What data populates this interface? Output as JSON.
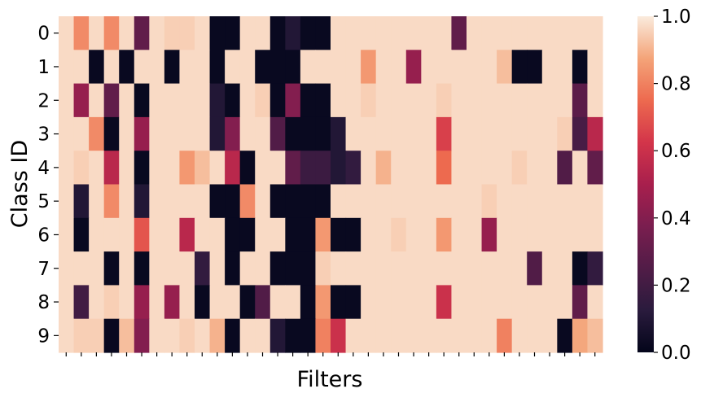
{
  "chart_data": {
    "type": "heatmap",
    "title": "",
    "xlabel": "Filters",
    "ylabel": "Class ID",
    "y_tick_labels": [
      "0",
      "1",
      "2",
      "3",
      "4",
      "5",
      "6",
      "7",
      "8",
      "9"
    ],
    "x_tick_labels_shown": false,
    "n_columns": 36,
    "colormap": "rocket",
    "colorbar": {
      "min": 0.0,
      "max": 1.0,
      "tick_labels": [
        "0.0",
        "0.2",
        "0.4",
        "0.6",
        "0.8",
        "1.0"
      ]
    },
    "grid": false,
    "values": [
      [
        0.97,
        0.82,
        0.97,
        0.82,
        0.97,
        0.3,
        0.97,
        0.95,
        0.95,
        0.97,
        0.02,
        0.02,
        0.97,
        0.97,
        0.02,
        0.1,
        0.02,
        0.02,
        0.97,
        0.97,
        0.97,
        0.97,
        0.97,
        0.97,
        0.97,
        0.97,
        0.3,
        0.97,
        0.97,
        0.97,
        0.97,
        0.97,
        0.97,
        0.97,
        0.97,
        0.97
      ],
      [
        0.97,
        0.97,
        0.02,
        0.97,
        0.02,
        0.97,
        0.97,
        0.02,
        0.97,
        0.97,
        0.02,
        0.97,
        0.97,
        0.02,
        0.02,
        0.02,
        0.97,
        0.97,
        0.97,
        0.97,
        0.85,
        0.97,
        0.97,
        0.45,
        0.97,
        0.97,
        0.97,
        0.97,
        0.97,
        0.92,
        0.02,
        0.02,
        0.97,
        0.97,
        0.02,
        0.97
      ],
      [
        0.97,
        0.45,
        0.97,
        0.3,
        0.97,
        0.02,
        0.97,
        0.97,
        0.97,
        0.97,
        0.1,
        0.02,
        0.97,
        0.95,
        0.02,
        0.4,
        0.02,
        0.02,
        0.97,
        0.97,
        0.95,
        0.97,
        0.97,
        0.97,
        0.97,
        0.95,
        0.97,
        0.97,
        0.97,
        0.97,
        0.97,
        0.97,
        0.97,
        0.97,
        0.28,
        0.97
      ],
      [
        0.97,
        0.97,
        0.82,
        0.02,
        0.97,
        0.45,
        0.97,
        0.97,
        0.97,
        0.97,
        0.1,
        0.4,
        0.97,
        0.97,
        0.25,
        0.02,
        0.02,
        0.02,
        0.1,
        0.97,
        0.97,
        0.97,
        0.97,
        0.97,
        0.97,
        0.65,
        0.97,
        0.97,
        0.97,
        0.97,
        0.97,
        0.97,
        0.97,
        0.95,
        0.22,
        0.55
      ],
      [
        0.97,
        0.95,
        0.97,
        0.55,
        0.97,
        0.02,
        0.97,
        0.97,
        0.85,
        0.92,
        0.97,
        0.55,
        0.02,
        0.97,
        0.97,
        0.3,
        0.18,
        0.18,
        0.1,
        0.15,
        0.97,
        0.9,
        0.97,
        0.97,
        0.97,
        0.75,
        0.97,
        0.97,
        0.97,
        0.97,
        0.95,
        0.97,
        0.97,
        0.25,
        0.97,
        0.3
      ],
      [
        0.97,
        0.1,
        0.97,
        0.82,
        0.97,
        0.1,
        0.97,
        0.97,
        0.97,
        0.97,
        0.02,
        0.02,
        0.82,
        0.97,
        0.02,
        0.02,
        0.02,
        0.02,
        0.97,
        0.97,
        0.97,
        0.97,
        0.97,
        0.97,
        0.97,
        0.97,
        0.97,
        0.97,
        0.95,
        0.97,
        0.97,
        0.97,
        0.97,
        0.97,
        0.97,
        0.97
      ],
      [
        0.97,
        0.02,
        0.97,
        0.97,
        0.97,
        0.7,
        0.97,
        0.97,
        0.55,
        0.97,
        0.97,
        0.02,
        0.02,
        0.97,
        0.97,
        0.02,
        0.02,
        0.85,
        0.02,
        0.02,
        0.97,
        0.97,
        0.95,
        0.97,
        0.97,
        0.85,
        0.97,
        0.97,
        0.45,
        0.97,
        0.97,
        0.97,
        0.97,
        0.97,
        0.97,
        0.97
      ],
      [
        0.97,
        0.97,
        0.97,
        0.02,
        0.97,
        0.02,
        0.97,
        0.97,
        0.97,
        0.15,
        0.97,
        0.02,
        0.97,
        0.97,
        0.02,
        0.02,
        0.02,
        0.95,
        0.97,
        0.97,
        0.97,
        0.97,
        0.97,
        0.97,
        0.97,
        0.97,
        0.97,
        0.97,
        0.97,
        0.97,
        0.97,
        0.25,
        0.97,
        0.97,
        0.02,
        0.15
      ],
      [
        0.97,
        0.2,
        0.97,
        0.95,
        0.97,
        0.45,
        0.97,
        0.45,
        0.97,
        0.02,
        0.97,
        0.97,
        0.02,
        0.25,
        0.97,
        0.97,
        0.02,
        0.85,
        0.02,
        0.02,
        0.97,
        0.97,
        0.97,
        0.97,
        0.97,
        0.6,
        0.97,
        0.97,
        0.97,
        0.97,
        0.97,
        0.97,
        0.97,
        0.97,
        0.3,
        0.97
      ],
      [
        0.97,
        0.95,
        0.95,
        0.02,
        0.92,
        0.4,
        0.97,
        0.97,
        0.95,
        0.97,
        0.9,
        0.02,
        0.97,
        0.97,
        0.1,
        0.02,
        0.02,
        0.8,
        0.6,
        0.97,
        0.97,
        0.97,
        0.97,
        0.97,
        0.97,
        0.97,
        0.97,
        0.97,
        0.97,
        0.8,
        0.97,
        0.97,
        0.97,
        0.02,
        0.88,
        0.92
      ]
    ]
  }
}
